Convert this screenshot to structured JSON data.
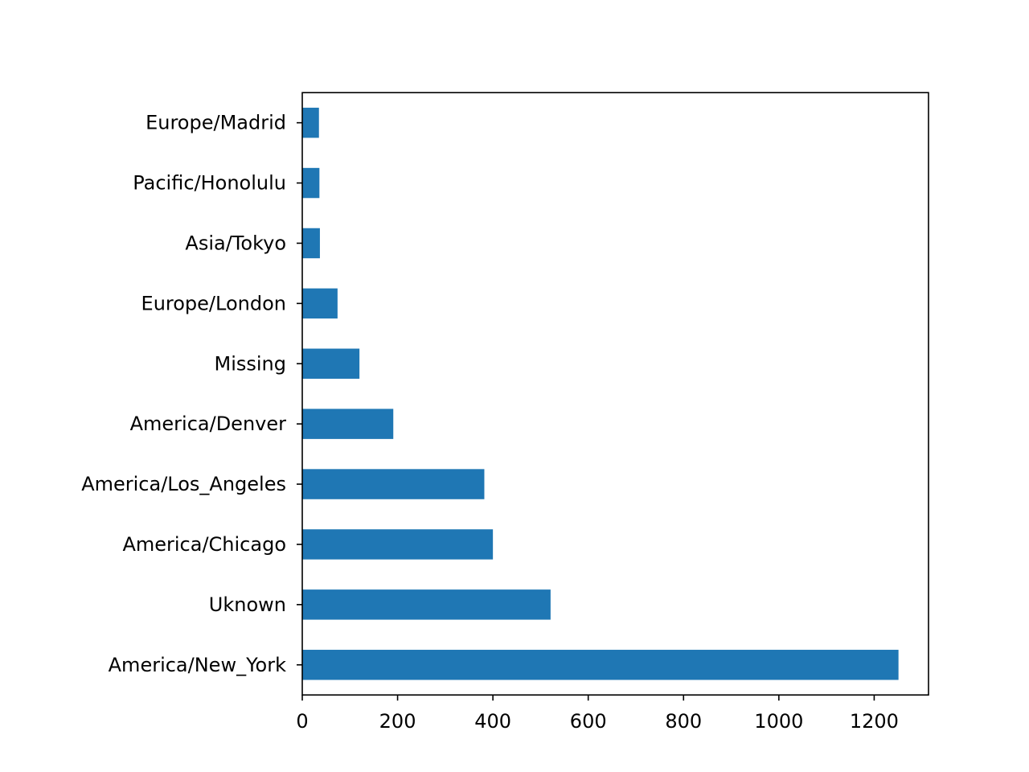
{
  "chart_data": {
    "type": "bar",
    "orientation": "horizontal",
    "categories": [
      "America/New_York",
      "Uknown",
      "America/Chicago",
      "America/Los_Angeles",
      "America/Denver",
      "Missing",
      "Europe/London",
      "Asia/Tokyo",
      "Pacific/Honolulu",
      "Europe/Madrid"
    ],
    "values": [
      1251,
      521,
      400,
      382,
      191,
      120,
      74,
      37,
      36,
      35
    ],
    "xticks": [
      0,
      200,
      400,
      600,
      800,
      1000,
      1200
    ],
    "xlim": [
      0,
      1314
    ],
    "title": "",
    "xlabel": "",
    "ylabel": "",
    "grid": false,
    "bar_color": "#1f77b4"
  }
}
